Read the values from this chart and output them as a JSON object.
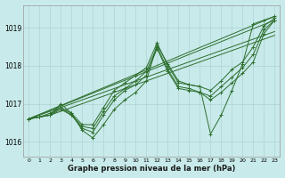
{
  "title": "Graphe pression niveau de la mer (hPa)",
  "bg_color": "#c8eaea",
  "grid_color": "#afd4d4",
  "line_color": "#2d6e2d",
  "xlim": [
    -0.5,
    23.5
  ],
  "ylim": [
    1015.6,
    1019.6
  ],
  "yticks": [
    1016,
    1017,
    1018,
    1019
  ],
  "xticks": [
    0,
    1,
    2,
    3,
    4,
    5,
    6,
    7,
    8,
    9,
    10,
    11,
    12,
    13,
    14,
    15,
    16,
    17,
    18,
    19,
    20,
    21,
    22,
    23
  ],
  "series": [
    [
      1016.6,
      1016.65,
      1016.7,
      1017.0,
      1016.75,
      1016.3,
      1016.1,
      1016.45,
      1016.85,
      1017.1,
      1017.3,
      1017.6,
      1018.55,
      1018.05,
      1017.6,
      1017.5,
      1017.45,
      1016.2,
      1016.7,
      1017.35,
      1018.05,
      1019.1,
      1019.2,
      1019.3
    ],
    [
      1016.6,
      1016.65,
      1016.7,
      1016.85,
      1016.7,
      1016.4,
      1016.35,
      1016.8,
      1017.2,
      1017.4,
      1017.6,
      1017.85,
      1018.5,
      1017.9,
      1017.45,
      1017.4,
      1017.3,
      1017.1,
      1017.3,
      1017.55,
      1017.8,
      1018.1,
      1018.85,
      1019.2
    ],
    [
      1016.6,
      1016.65,
      1016.75,
      1016.9,
      1016.75,
      1016.45,
      1016.45,
      1016.9,
      1017.35,
      1017.55,
      1017.75,
      1017.95,
      1018.6,
      1018.0,
      1017.55,
      1017.5,
      1017.45,
      1017.35,
      1017.6,
      1017.9,
      1018.1,
      1018.5,
      1019.05,
      1019.25
    ],
    [
      1016.6,
      1016.65,
      1016.7,
      1016.9,
      1016.7,
      1016.35,
      1016.25,
      1016.7,
      1017.1,
      1017.35,
      1017.5,
      1017.75,
      1018.45,
      1017.85,
      1017.4,
      1017.35,
      1017.3,
      1017.2,
      1017.45,
      1017.7,
      1017.95,
      1018.3,
      1018.95,
      1019.2
    ]
  ],
  "straight_series": [
    [
      [
        0,
        23
      ],
      [
        1016.6,
        1019.3
      ]
    ],
    [
      [
        0,
        23
      ],
      [
        1016.6,
        1019.2
      ]
    ],
    [
      [
        2,
        23
      ],
      [
        1016.7,
        1018.8
      ]
    ],
    [
      [
        0,
        23
      ],
      [
        1016.6,
        1018.9
      ]
    ]
  ]
}
